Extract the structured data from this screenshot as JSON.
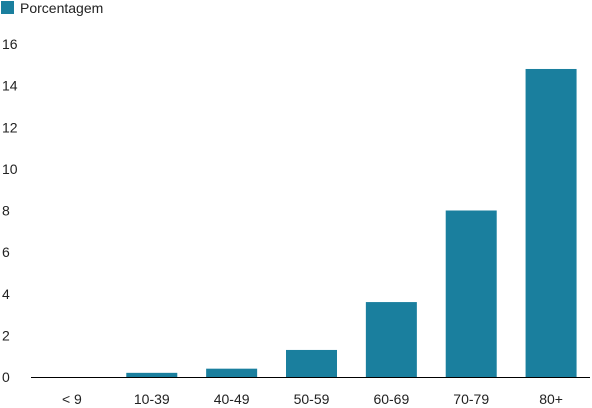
{
  "colors": {
    "bar": "#1a7f9e",
    "axis": "#000000",
    "text": "#222222",
    "background": "#ffffff"
  },
  "chart_data": {
    "type": "bar",
    "title": "",
    "xlabel": "",
    "ylabel": "",
    "legend": {
      "position": "top-left",
      "entries": [
        "Porcentagem"
      ]
    },
    "grid": false,
    "categories": [
      "<  9",
      "10-39",
      "40-49",
      "50-59",
      "60-69",
      "70-79",
      "80+"
    ],
    "series": [
      {
        "name": "Porcentagem",
        "values": [
          0,
          0.2,
          0.4,
          1.3,
          3.6,
          8.0,
          14.8
        ]
      }
    ],
    "ylim": [
      0,
      16
    ],
    "yticks": [
      0,
      2,
      4,
      6,
      8,
      10,
      12,
      14,
      16
    ]
  }
}
